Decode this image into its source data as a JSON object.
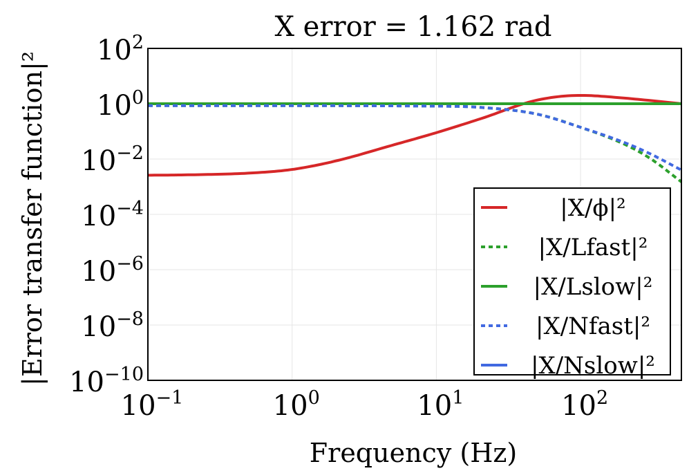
{
  "chart_data": {
    "type": "line",
    "title": "X error = 1.162 rad",
    "xlabel": "Frequency (Hz)",
    "ylabel": "|Error transfer function|²",
    "x_scale": "log",
    "y_scale": "log",
    "xlim": [
      0.1,
      500
    ],
    "ylim": [
      1e-10,
      100
    ],
    "grid": true,
    "legend_position": "lower-right",
    "x_ticks": [
      {
        "value": 0.1,
        "base": "10",
        "exp": "−1"
      },
      {
        "value": 1,
        "base": "10",
        "exp": "0"
      },
      {
        "value": 10,
        "base": "10",
        "exp": "1"
      },
      {
        "value": 100,
        "base": "10",
        "exp": "2"
      }
    ],
    "y_ticks": [
      {
        "value": 100,
        "base": "10",
        "exp": "2"
      },
      {
        "value": 1,
        "base": "10",
        "exp": "0"
      },
      {
        "value": 0.01,
        "base": "10",
        "exp": "−2"
      },
      {
        "value": 0.0001,
        "base": "10",
        "exp": "−4"
      },
      {
        "value": 1e-06,
        "base": "10",
        "exp": "−6"
      },
      {
        "value": 1e-08,
        "base": "10",
        "exp": "−8"
      },
      {
        "value": 1e-10,
        "base": "10",
        "exp": "−10"
      }
    ],
    "series": [
      {
        "name": "|X/ϕ|²",
        "color": "#d62728",
        "dash": "solid",
        "x": [
          0.1,
          0.2,
          0.5,
          1,
          2,
          5,
          10,
          20,
          50,
          100,
          200,
          500
        ],
        "y": [
          0.0026,
          0.0027,
          0.0031,
          0.0042,
          0.0085,
          0.032,
          0.09,
          0.28,
          1.35,
          2.0,
          1.6,
          1.0
        ]
      },
      {
        "name": "|X/Lfast|²",
        "color": "#2ca02c",
        "dash": "dotted",
        "x": [
          0.1,
          1,
          10,
          20,
          50,
          100,
          200,
          300,
          500
        ],
        "y": [
          0.85,
          0.85,
          0.82,
          0.74,
          0.42,
          0.14,
          0.035,
          0.011,
          0.0015
        ]
      },
      {
        "name": "|X/Lslow|²",
        "color": "#2ca02c",
        "dash": "solid",
        "x": [
          0.1,
          1,
          10,
          100,
          500
        ],
        "y": [
          1.0,
          1.0,
          1.0,
          1.0,
          1.0
        ]
      },
      {
        "name": "|X/Nfast|²",
        "color": "#4169e1",
        "dash": "dotted",
        "x": [
          0.1,
          1,
          10,
          20,
          50,
          100,
          200,
          300,
          500
        ],
        "y": [
          0.85,
          0.85,
          0.82,
          0.74,
          0.42,
          0.14,
          0.04,
          0.016,
          0.004
        ]
      },
      {
        "name": "|X/Nslow|²",
        "color": "#4169e1",
        "dash": "solid",
        "x": [],
        "y": []
      }
    ]
  }
}
